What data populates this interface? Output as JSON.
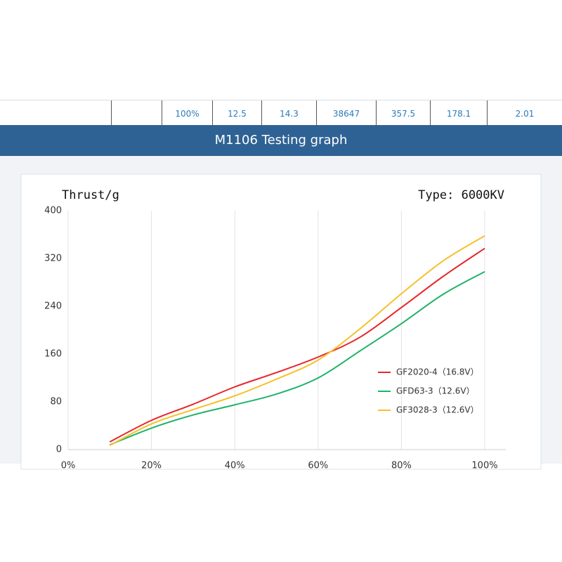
{
  "table": {
    "rows": [
      [
        "100%",
        "12.5",
        "14.3",
        "38647",
        "357.5",
        "178.1",
        "2.01"
      ]
    ]
  },
  "banner": {
    "title": "M1106 Testing graph"
  },
  "chart_data": {
    "type": "line",
    "y_label": "Thrust/g",
    "annotation": "Type:  6000KV",
    "x": [
      10,
      20,
      30,
      40,
      50,
      60,
      70,
      80,
      90,
      100
    ],
    "series": [
      {
        "name": "GF2020-4（16.8V）",
        "color": "#e8262b",
        "values": [
          13,
          49,
          76,
          105,
          129,
          155,
          188,
          238,
          290,
          337
        ]
      },
      {
        "name": "GFD63-3（12.6V）",
        "color": "#1fb26a",
        "values": [
          8,
          36,
          58,
          75,
          93,
          120,
          165,
          211,
          260,
          298
        ]
      },
      {
        "name": "GF3028-3（12.6V）",
        "color": "#f5c12a",
        "values": [
          7,
          43,
          67,
          90,
          118,
          150,
          202,
          261,
          316,
          358
        ]
      }
    ],
    "xlim": [
      0,
      100
    ],
    "xticks": [
      {
        "value": 0,
        "label": "0%"
      },
      {
        "value": 20,
        "label": "20%"
      },
      {
        "value": 40,
        "label": "40%"
      },
      {
        "value": 60,
        "label": "60%"
      },
      {
        "value": 80,
        "label": "80%"
      },
      {
        "value": 100,
        "label": "100%"
      }
    ],
    "ylim": [
      0,
      400
    ],
    "yticks": [
      0,
      80,
      160,
      240,
      320,
      400
    ],
    "grid": true,
    "legend": "right"
  }
}
